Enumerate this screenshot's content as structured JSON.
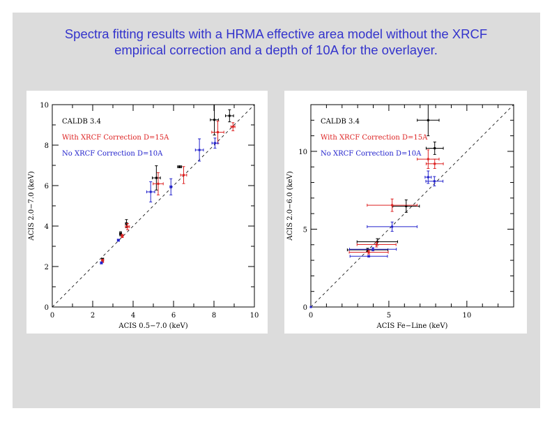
{
  "title": {
    "line1": "Spectra fitting results with a HRMA effective area model without the XRCF",
    "line2": "empirical correction and a depth of 10A for the overlayer."
  },
  "chart_data": [
    {
      "type": "scatter",
      "xlabel": "ACIS 0.5−7.0 (keV)",
      "ylabel": "ACIS 2.0−7.0 (keV)",
      "xlim": [
        0,
        10
      ],
      "ylim": [
        0,
        10
      ],
      "xticks": [
        0,
        2,
        4,
        6,
        8,
        10
      ],
      "yticks": [
        0,
        2,
        4,
        6,
        8,
        10
      ],
      "minor_step": 1,
      "reference_line": "y = x (dashed)",
      "legend_placement": "top-left",
      "series": [
        {
          "name": "CALDB 3.4",
          "color": "#000000",
          "points": [
            [
              8.77,
              9.45,
              0.2,
              0.3
            ],
            [
              8.02,
              9.25,
              0.2,
              0.75
            ],
            [
              6.3,
              6.93,
              0.1,
              0.05
            ],
            [
              5.15,
              6.38,
              0.2,
              0.6
            ],
            [
              3.67,
              4.12,
              0.05,
              0.2
            ],
            [
              3.38,
              3.62,
              0.05,
              0.1
            ],
            [
              2.49,
              2.36,
              0.05,
              0.05
            ]
          ]
        },
        {
          "name": "With XRCF Correction D=15A",
          "color": "#dd2222",
          "points": [
            [
              8.94,
              8.91,
              0.1,
              0.2
            ],
            [
              8.19,
              8.64,
              0.3,
              0.55
            ],
            [
              6.5,
              6.52,
              0.15,
              0.42
            ],
            [
              5.24,
              6.09,
              0.25,
              0.55
            ],
            [
              3.72,
              3.97,
              0.1,
              0.15
            ],
            [
              3.46,
              3.51,
              0.05,
              0.08
            ],
            [
              2.49,
              2.28,
              0.05,
              0.08
            ]
          ]
        },
        {
          "name": "No XRCF Correction D=10A",
          "color": "#2222cc",
          "points": [
            [
              8.05,
              8.1,
              0.15,
              0.25
            ],
            [
              7.28,
              7.76,
              0.2,
              0.55
            ],
            [
              5.87,
              5.94,
              0.05,
              0.4
            ],
            [
              4.87,
              5.69,
              0.2,
              0.5
            ],
            [
              3.27,
              3.3,
              0.05,
              0.05
            ],
            [
              2.43,
              2.18,
              0.05,
              0.05
            ]
          ]
        }
      ]
    },
    {
      "type": "scatter",
      "xlabel": "ACIS Fe−Line (keV)",
      "ylabel": "ACIS 2.0−6.0 (keV)",
      "xlim": [
        0,
        13
      ],
      "ylim": [
        0,
        13
      ],
      "xticks": [
        0,
        5,
        10
      ],
      "yticks": [
        0,
        5,
        10
      ],
      "minor_step": 1,
      "reference_line": "y = x (dashed)",
      "legend_placement": "top-left",
      "series": [
        {
          "name": "CALDB 3.4",
          "color": "#000000",
          "points": [
            [
              7.52,
              12.0,
              0.7,
              1.0
            ],
            [
              7.94,
              10.2,
              0.55,
              0.4
            ],
            [
              6.11,
              6.48,
              0.85,
              0.4
            ],
            [
              4.26,
              4.19,
              1.3,
              0.2
            ],
            [
              3.64,
              3.67,
              1.3,
              0.1
            ]
          ]
        },
        {
          "name": "With XRCF Correction D=15A",
          "color": "#dd2222",
          "points": [
            [
              7.52,
              9.5,
              0.7,
              0.6
            ],
            [
              7.94,
              9.2,
              0.55,
              0.3
            ],
            [
              5.21,
              6.54,
              1.6,
              0.4
            ],
            [
              4.21,
              4.01,
              1.25,
              0.15
            ],
            [
              3.71,
              3.52,
              1.25,
              0.12
            ]
          ]
        },
        {
          "name": "No XRCF Correction D=10A",
          "color": "#2222cc",
          "points": [
            [
              7.52,
              8.34,
              0.2,
              0.4
            ],
            [
              7.92,
              8.08,
              0.55,
              0.3
            ],
            [
              5.21,
              5.16,
              1.6,
              0.3
            ],
            [
              3.98,
              3.71,
              1.5,
              0.1
            ],
            [
              3.71,
              3.26,
              1.2,
              0.05
            ],
            [
              0,
              0,
              0,
              0
            ]
          ]
        }
      ]
    }
  ]
}
